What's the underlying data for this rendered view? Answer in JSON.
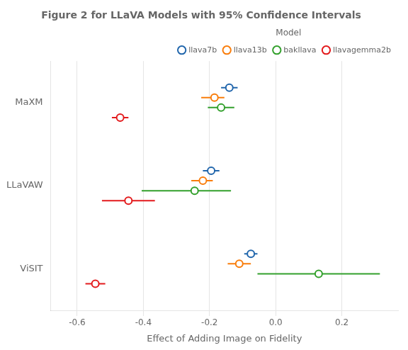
{
  "chart_data": {
    "type": "dot",
    "title": "Figure 2 for LLaVA Models with 95% Confidence Intervals",
    "xlabel": "Effect of Adding Image on Fidelity",
    "categories": [
      "MaXM",
      "LLaVAW",
      "ViSIT"
    ],
    "series": [
      {
        "name": "llava7b",
        "color": "#2166ac",
        "values": [
          -0.14,
          -0.195,
          -0.075
        ],
        "lo": [
          -0.165,
          -0.22,
          -0.095
        ],
        "hi": [
          -0.115,
          -0.17,
          -0.055
        ]
      },
      {
        "name": "llava13b",
        "color": "#f97d0b",
        "values": [
          -0.185,
          -0.22,
          -0.11
        ],
        "lo": [
          -0.225,
          -0.255,
          -0.145
        ],
        "hi": [
          -0.155,
          -0.19,
          -0.075
        ]
      },
      {
        "name": "bakllava",
        "color": "#33a02c",
        "values": [
          -0.165,
          -0.245,
          0.13
        ],
        "lo": [
          -0.205,
          -0.405,
          -0.055
        ],
        "hi": [
          -0.125,
          -0.135,
          0.315
        ]
      },
      {
        "name": "llavagemma2b",
        "color": "#e31a1c",
        "values": [
          -0.47,
          -0.445,
          -0.545
        ],
        "lo": [
          -0.495,
          -0.525,
          -0.575
        ],
        "hi": [
          -0.445,
          -0.365,
          -0.515
        ]
      }
    ],
    "xlim": [
      -0.68,
      0.37
    ],
    "xticks": [
      -0.6,
      -0.4,
      -0.2,
      {
        "value": 0,
        "label": "0.0"
      },
      0.2
    ],
    "grid": "x",
    "legend": "upper right",
    "legend_title": "Model",
    "marker": "circle"
  }
}
